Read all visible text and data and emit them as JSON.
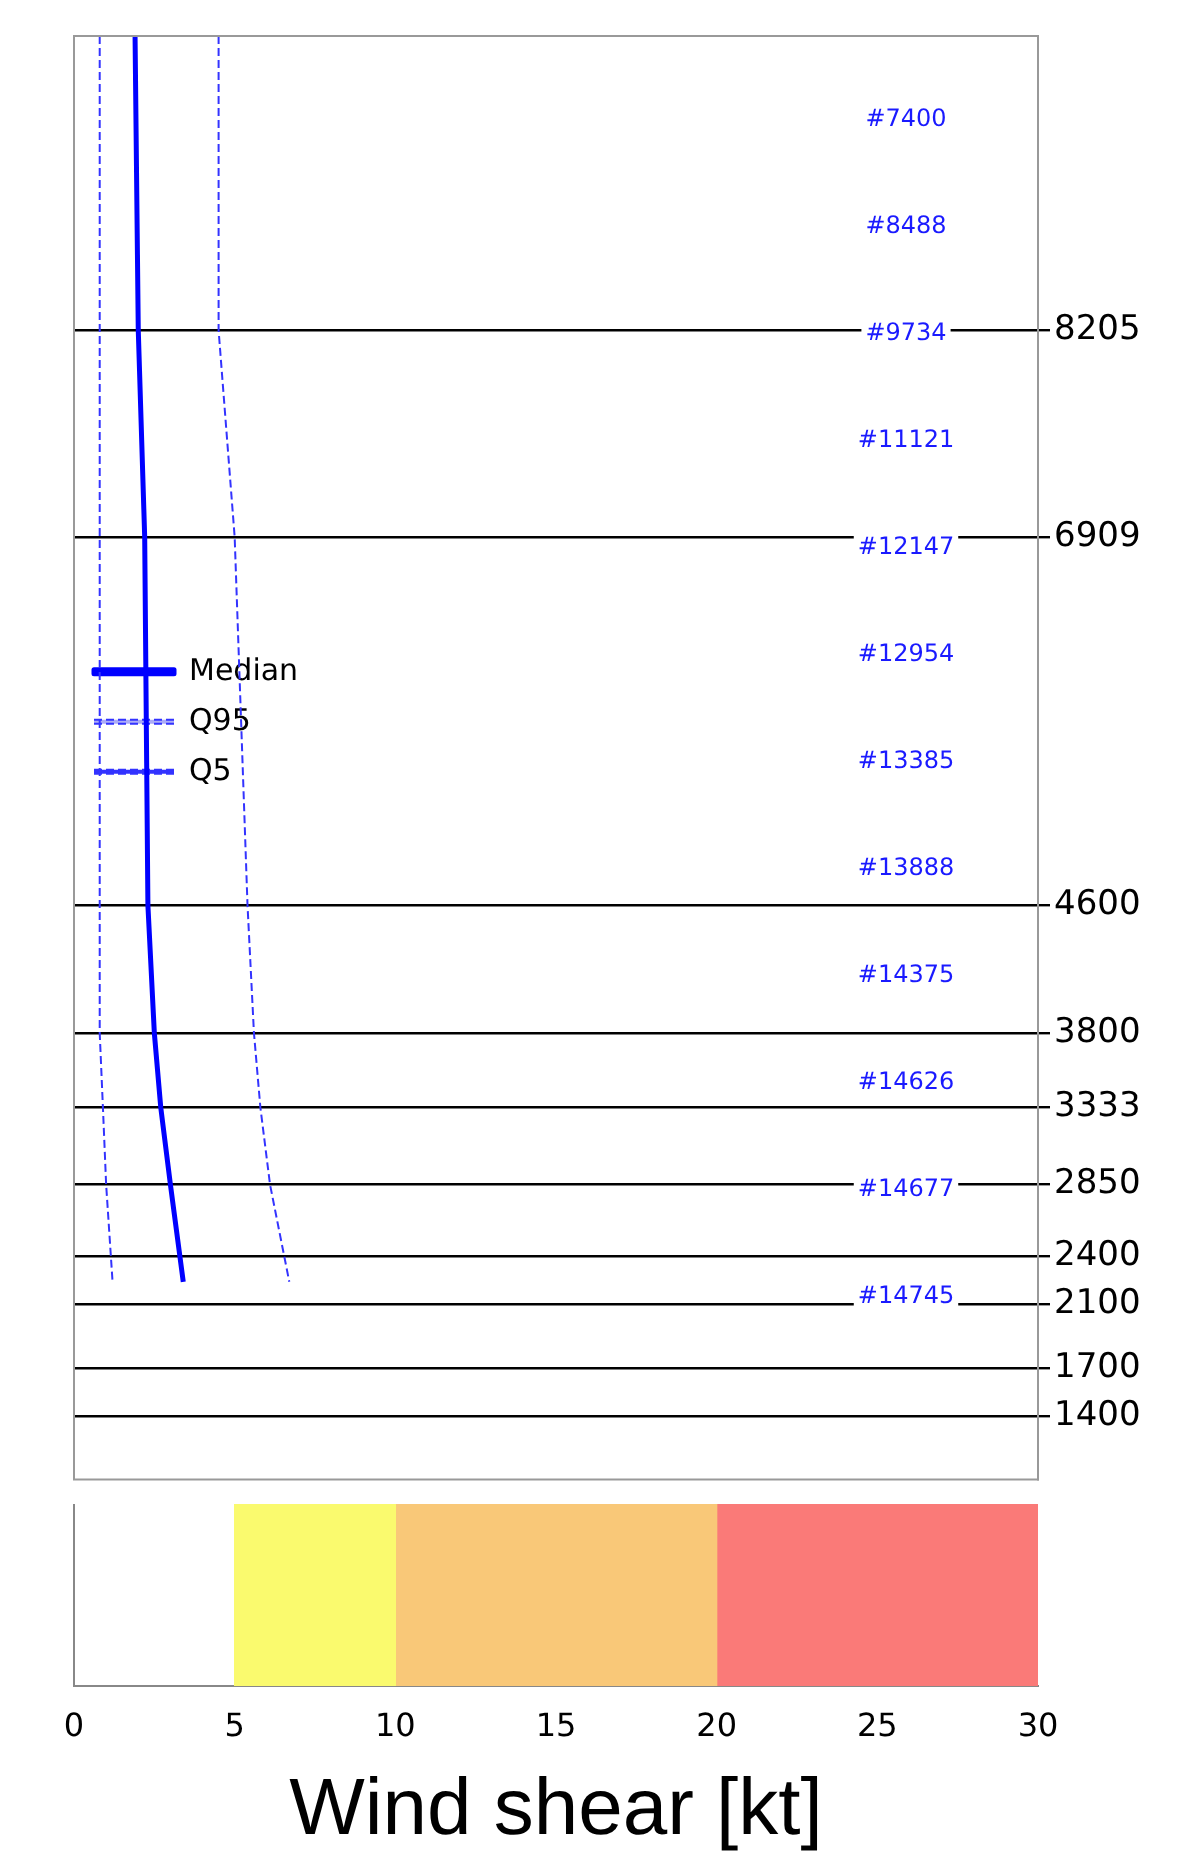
{
  "chart_data": [
    {
      "type": "line",
      "orientation": "horizontal",
      "xlim": [
        0,
        30
      ],
      "ylim": [
        1000,
        10050
      ],
      "yticks": [
        8205,
        6909,
        4600,
        3800,
        3333,
        2850,
        2400,
        2100,
        1700,
        1400
      ],
      "grid": "y",
      "tick_labels": "y",
      "legend": "top",
      "series": [
        {
          "name": "Median",
          "color": "#0000ff",
          "line_style": "solid",
          "x": [
            10050,
            8205,
            6909,
            4600,
            3800,
            3333,
            2850,
            2240
          ],
          "values": [
            1.9,
            2.0,
            2.2,
            2.3,
            2.5,
            2.7,
            3.0,
            3.4
          ]
        },
        {
          "name": "Q95",
          "color": "#3333ff",
          "line_style": "dashed",
          "x": [
            10050,
            8205,
            6909,
            4600,
            3800,
            3333,
            2850,
            2240
          ],
          "values": [
            4.5,
            4.5,
            5.0,
            5.4,
            5.6,
            5.8,
            6.1,
            6.7
          ]
        },
        {
          "name": "Q5",
          "color": "#3333ff",
          "line_style": "dashed",
          "x": [
            10050,
            8205,
            6909,
            4600,
            3800,
            3333,
            2850,
            2240
          ],
          "values": [
            0.8,
            0.8,
            0.8,
            0.8,
            0.8,
            0.9,
            1.0,
            1.2
          ]
        }
      ],
      "annotations": [
        "#7400",
        "#8488",
        "#9734",
        "#11121",
        "#12147",
        "#12954",
        "#13385",
        "#13888",
        "#14375",
        "#14626",
        "#14677",
        "#14745"
      ]
    },
    {
      "type": "bar",
      "orientation": "horizontal",
      "categories": [
        null
      ],
      "xlim": [
        0,
        30
      ],
      "xticks": [
        0,
        5,
        10,
        15,
        20,
        25,
        30
      ],
      "xlabel": "Wind shear [kt]",
      "tick_labels": "x",
      "series": [
        {
          "color": "#fafa6e",
          "base": [
            5
          ],
          "values": [
            5
          ]
        },
        {
          "color": "#f9c878",
          "base": [
            10
          ],
          "values": [
            10
          ]
        },
        {
          "color": "#fa7a78",
          "base": [
            20
          ],
          "values": [
            10
          ]
        }
      ]
    }
  ]
}
